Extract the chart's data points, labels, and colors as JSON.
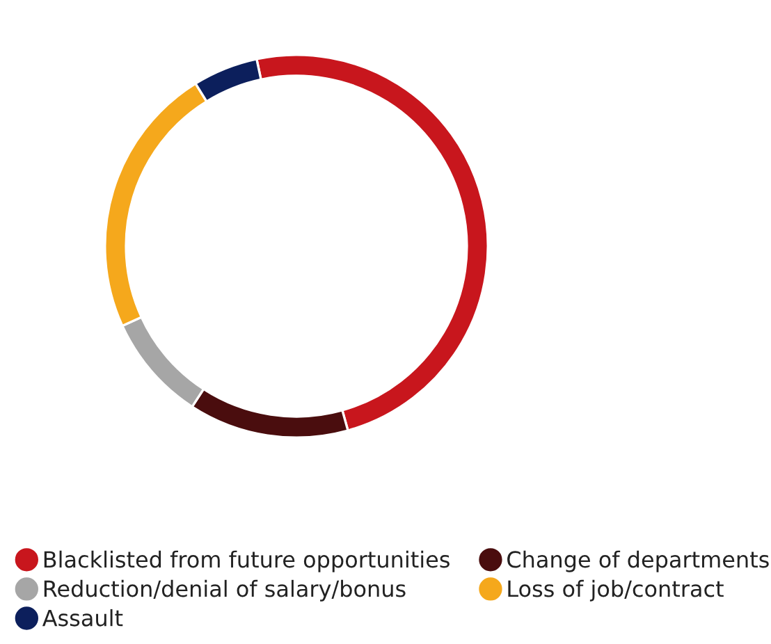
{
  "chart_data": {
    "type": "donut",
    "categories": [
      "Blacklisted from future opportunities",
      "Change of departments",
      "Reduction/denial of salary/bonus",
      "Loss of job/contract",
      "Assault"
    ],
    "values": [
      49,
      13.5,
      9,
      23,
      5.5
    ],
    "colors": [
      "#c8161d",
      "#4a0d0e",
      "#a6a6a6",
      "#f5a81c",
      "#0c1f5c"
    ],
    "legend": "bottom"
  }
}
